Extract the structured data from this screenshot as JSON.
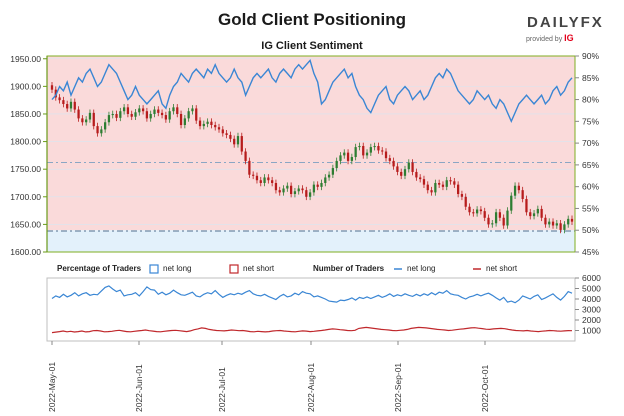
{
  "header": {
    "title": "Gold Client Positioning",
    "subtitle": "IG Client Sentiment",
    "logo_text": "DAILYFX",
    "provided_by": "provided by",
    "provided_brand": "IG"
  },
  "legend": {
    "pct_title": "Percentage of Traders",
    "pct_long": "net long",
    "pct_short": "net short",
    "num_title": "Number of Traders",
    "num_long": "net long",
    "num_short": "net short"
  },
  "colors": {
    "short_zone": "#fadada",
    "long_zone": "#e3f1fb",
    "up_candle": "#2e7d32",
    "down_candle": "#b71c1c",
    "sentiment_line": "#3a86d4",
    "net_short_line": "#c0282c",
    "left_axis": "#6a9a1a"
  },
  "chart_data": [
    {
      "type": "candlestick",
      "title": "Gold Client Positioning",
      "y_left": {
        "ticks": [
          "1600.00",
          "1650.00",
          "1700.00",
          "1750.00",
          "1800.00",
          "1850.00",
          "1900.00",
          "1950.00"
        ],
        "range": [
          1600,
          1955
        ]
      },
      "y_right": {
        "ticks": [
          "45%",
          "50%",
          "55%",
          "60%",
          "65%",
          "70%",
          "75%",
          "80%",
          "85%",
          "90%"
        ],
        "range": [
          45,
          90
        ]
      },
      "reference_lines": [
        1762,
        1638
      ],
      "x_ticks": [
        "2022-May-01",
        "2022-Jun-01",
        "2022-Jul-01",
        "2022-Aug-01",
        "2022-Sep-01",
        "2022-Oct-01"
      ],
      "close": [
        1894,
        1880,
        1875,
        1868,
        1860,
        1872,
        1858,
        1842,
        1835,
        1840,
        1852,
        1828,
        1815,
        1822,
        1835,
        1848,
        1850,
        1843,
        1855,
        1862,
        1850,
        1845,
        1853,
        1860,
        1855,
        1842,
        1850,
        1858,
        1852,
        1848,
        1840,
        1855,
        1862,
        1850,
        1830,
        1842,
        1855,
        1860,
        1838,
        1828,
        1832,
        1836,
        1830,
        1826,
        1822,
        1815,
        1812,
        1805,
        1795,
        1810,
        1782,
        1765,
        1740,
        1738,
        1730,
        1725,
        1735,
        1730,
        1725,
        1712,
        1708,
        1715,
        1720,
        1705,
        1710,
        1715,
        1712,
        1700,
        1708,
        1722,
        1718,
        1725,
        1735,
        1740,
        1752,
        1765,
        1775,
        1780,
        1765,
        1772,
        1790,
        1792,
        1775,
        1780,
        1790,
        1792,
        1784,
        1782,
        1770,
        1765,
        1755,
        1745,
        1738,
        1750,
        1762,
        1745,
        1735,
        1732,
        1722,
        1712,
        1708,
        1725,
        1722,
        1718,
        1730,
        1728,
        1722,
        1705,
        1700,
        1682,
        1672,
        1670,
        1677,
        1674,
        1662,
        1650,
        1652,
        1672,
        1662,
        1648,
        1675,
        1702,
        1720,
        1712,
        1696,
        1672,
        1665,
        1670,
        1678,
        1662,
        1650,
        1655,
        1648,
        1652,
        1640,
        1650,
        1660,
        1655
      ],
      "sentiment_long_pct": [
        80,
        81,
        83,
        82,
        84,
        81,
        83,
        85,
        84,
        86,
        87,
        85,
        83,
        84,
        86,
        88,
        87,
        86,
        84,
        82,
        80,
        81,
        83,
        81,
        80,
        79,
        80,
        81,
        82,
        79,
        78,
        81,
        83,
        84,
        86,
        85,
        84,
        86,
        87,
        86,
        85,
        87,
        86,
        88,
        86,
        85,
        84,
        85,
        87,
        85,
        84,
        81,
        83,
        85,
        86,
        85,
        86,
        87,
        85,
        84,
        86,
        87,
        86,
        85,
        87,
        88,
        87,
        88,
        89,
        86,
        84,
        79,
        80,
        82,
        84,
        85,
        86,
        87,
        85,
        86,
        83,
        81,
        80,
        78,
        77,
        79,
        81,
        82,
        83,
        80,
        79,
        81,
        82,
        83,
        82,
        80,
        81,
        82,
        80,
        81,
        83,
        85,
        86,
        85,
        87,
        86,
        84,
        82,
        81,
        80,
        79,
        80,
        82,
        81,
        80,
        81,
        79,
        78,
        80,
        79,
        77,
        75,
        77,
        79,
        80,
        81,
        80,
        79,
        80,
        81,
        79,
        80,
        82,
        83,
        81,
        82,
        84,
        85
      ]
    },
    {
      "type": "line",
      "title": "Number of Traders",
      "y_ticks": [
        "1000",
        "2000",
        "3000",
        "4000",
        "5000",
        "6000"
      ],
      "y_range": [
        0,
        6000
      ],
      "x_ticks": [
        "2022-May-01",
        "2022-Jun-01",
        "2022-Jul-01",
        "2022-Aug-01",
        "2022-Sep-01",
        "2022-Oct-01"
      ],
      "series": [
        {
          "name": "net long",
          "values": [
            4050,
            4300,
            4150,
            4450,
            4200,
            4350,
            4600,
            4300,
            4500,
            4600,
            4350,
            4450,
            4400,
            4750,
            5100,
            5250,
            4950,
            4700,
            4850,
            4300,
            4400,
            4450,
            4600,
            4300,
            4700,
            5150,
            4900,
            4850,
            4450,
            4650,
            4400,
            4550,
            4850,
            4600,
            4400,
            4350,
            4500,
            4650,
            4300,
            4200,
            4450,
            4600,
            4500,
            4800,
            4450,
            4150,
            4350,
            4500,
            4400,
            4550,
            4450,
            4650,
            4800,
            4500,
            4350,
            4300,
            4450,
            4250,
            4100,
            3950,
            4250,
            4450,
            4200,
            4300,
            4550,
            4400,
            4700,
            4550,
            4500,
            4200,
            4300,
            4150,
            4000,
            3800,
            3750,
            3700,
            3900,
            3850,
            3950,
            4100,
            3900,
            4150,
            4050,
            4200,
            4050,
            4200,
            4350,
            4150,
            4300,
            4500,
            4250,
            4400,
            4300,
            4500,
            4350,
            4250,
            4450,
            4300,
            4500,
            4350,
            4600,
            4400,
            4650,
            4550,
            4800,
            4500,
            4400,
            4350,
            4150,
            4000,
            4200,
            4300,
            4450,
            4300,
            4450,
            4550,
            4350,
            4100,
            3900,
            4150,
            3700,
            3800,
            3650,
            3900,
            4300,
            4150,
            4000,
            4250,
            4400,
            3950,
            4100,
            4300,
            4500,
            4150,
            3900,
            4250,
            4700,
            4550
          ]
        },
        {
          "name": "net short",
          "values": [
            800,
            850,
            900,
            950,
            880,
            920,
            860,
            900,
            950,
            870,
            900,
            980,
            1000,
            950,
            880,
            900,
            920,
            980,
            1020,
            950,
            900,
            880,
            920,
            960,
            1000,
            1050,
            980,
            940,
            900,
            880,
            920,
            960,
            1000,
            1020,
            980,
            940,
            900,
            960,
            1080,
            1150,
            1250,
            1200,
            1100,
            1050,
            1000,
            980,
            960,
            1000,
            1050,
            1020,
            980,
            1000,
            950,
            900,
            880,
            920,
            900,
            870,
            900,
            950,
            980,
            1000,
            950,
            920,
            900,
            880,
            920,
            960,
            940,
            900,
            920,
            960,
            1000,
            1050,
            1100,
            1150,
            1120,
            1080,
            1050,
            1000,
            980,
            1020,
            1200,
            1250,
            1300,
            1250,
            1200,
            1150,
            1100,
            1080,
            1050,
            1000,
            980,
            1020,
            1050,
            1100,
            1200,
            1250,
            1300,
            1280,
            1250,
            1200,
            1150,
            1100,
            1080,
            1050,
            1000,
            1030,
            1080,
            1120,
            1150,
            1200,
            1250,
            1270,
            1220,
            1180,
            1120,
            1100,
            1150,
            1180,
            1200,
            1170,
            1100,
            1050,
            1000,
            980,
            960,
            1000,
            950,
            920,
            900,
            930,
            960,
            1000,
            980,
            950,
            930,
            960,
            990,
            980
          ]
        }
      ]
    }
  ]
}
